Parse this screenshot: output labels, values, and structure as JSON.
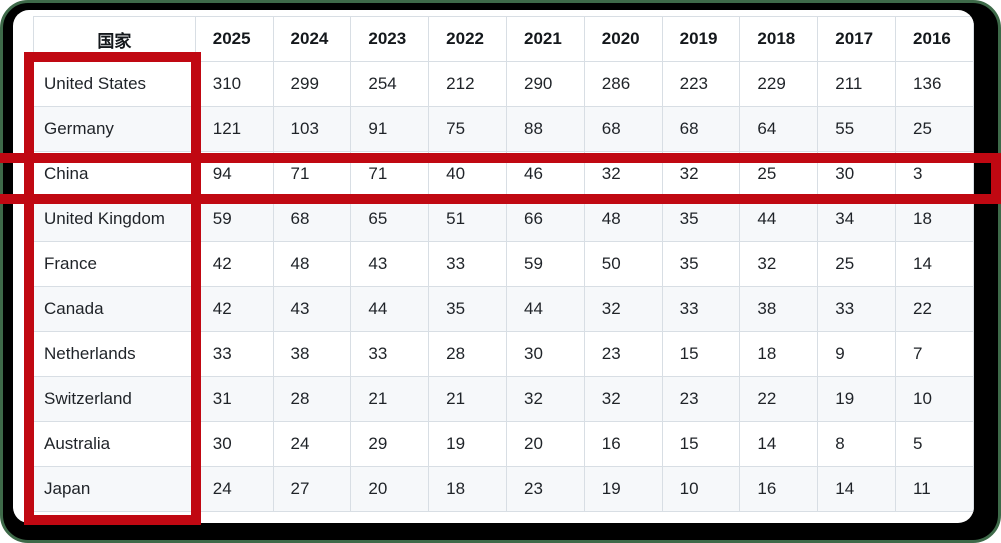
{
  "window": {
    "frame_color": "#000000",
    "edge_color": "#3e6a49",
    "content_background": "#ffffff"
  },
  "annotations": {
    "highlight_color": "#c00812",
    "boxes": [
      {
        "id": "country-column",
        "target": "国家 column"
      },
      {
        "id": "china-row",
        "target": "China row"
      }
    ]
  },
  "table": {
    "country_header": "国家",
    "years": [
      "2025",
      "2024",
      "2023",
      "2022",
      "2021",
      "2020",
      "2019",
      "2018",
      "2017",
      "2016"
    ],
    "rows": [
      {
        "country": "United States",
        "values": [
          310,
          299,
          254,
          212,
          290,
          286,
          223,
          229,
          211,
          136
        ]
      },
      {
        "country": "Germany",
        "values": [
          121,
          103,
          91,
          75,
          88,
          68,
          68,
          64,
          55,
          25
        ]
      },
      {
        "country": "China",
        "values": [
          94,
          71,
          71,
          40,
          46,
          32,
          32,
          25,
          30,
          3
        ],
        "highlighted": true
      },
      {
        "country": "United Kingdom",
        "values": [
          59,
          68,
          65,
          51,
          66,
          48,
          35,
          44,
          34,
          18
        ]
      },
      {
        "country": "France",
        "values": [
          42,
          48,
          43,
          33,
          59,
          50,
          35,
          32,
          25,
          14
        ]
      },
      {
        "country": "Canada",
        "values": [
          42,
          43,
          44,
          35,
          44,
          32,
          33,
          38,
          33,
          22
        ]
      },
      {
        "country": "Netherlands",
        "values": [
          33,
          38,
          33,
          28,
          30,
          23,
          15,
          18,
          9,
          7
        ]
      },
      {
        "country": "Switzerland",
        "values": [
          31,
          28,
          21,
          21,
          32,
          32,
          23,
          22,
          19,
          10
        ]
      },
      {
        "country": "Australia",
        "values": [
          30,
          24,
          29,
          19,
          20,
          16,
          15,
          14,
          8,
          5
        ]
      },
      {
        "country": "Japan",
        "values": [
          24,
          27,
          20,
          18,
          23,
          19,
          10,
          16,
          14,
          11
        ]
      }
    ]
  },
  "chart_data": {
    "type": "table",
    "title": "",
    "categories": [
      "2025",
      "2024",
      "2023",
      "2022",
      "2021",
      "2020",
      "2019",
      "2018",
      "2017",
      "2016"
    ],
    "row_header_label": "国家",
    "series": [
      {
        "name": "United States",
        "values": [
          310,
          299,
          254,
          212,
          290,
          286,
          223,
          229,
          211,
          136
        ]
      },
      {
        "name": "Germany",
        "values": [
          121,
          103,
          91,
          75,
          88,
          68,
          68,
          64,
          55,
          25
        ]
      },
      {
        "name": "China",
        "values": [
          94,
          71,
          71,
          40,
          46,
          32,
          32,
          25,
          30,
          3
        ]
      },
      {
        "name": "United Kingdom",
        "values": [
          59,
          68,
          65,
          51,
          66,
          48,
          35,
          44,
          34,
          18
        ]
      },
      {
        "name": "France",
        "values": [
          42,
          48,
          43,
          33,
          59,
          50,
          35,
          32,
          25,
          14
        ]
      },
      {
        "name": "Canada",
        "values": [
          42,
          43,
          44,
          35,
          44,
          32,
          33,
          38,
          33,
          22
        ]
      },
      {
        "name": "Netherlands",
        "values": [
          33,
          38,
          33,
          28,
          30,
          23,
          15,
          18,
          9,
          7
        ]
      },
      {
        "name": "Switzerland",
        "values": [
          31,
          28,
          21,
          21,
          32,
          32,
          23,
          22,
          19,
          10
        ]
      },
      {
        "name": "Australia",
        "values": [
          30,
          24,
          29,
          19,
          20,
          16,
          15,
          14,
          8,
          5
        ]
      },
      {
        "name": "Japan",
        "values": [
          24,
          27,
          20,
          18,
          23,
          19,
          10,
          16,
          14,
          11
        ]
      }
    ],
    "layout": {
      "striped_rows": true,
      "grid": true,
      "legend_position": "none"
    }
  }
}
